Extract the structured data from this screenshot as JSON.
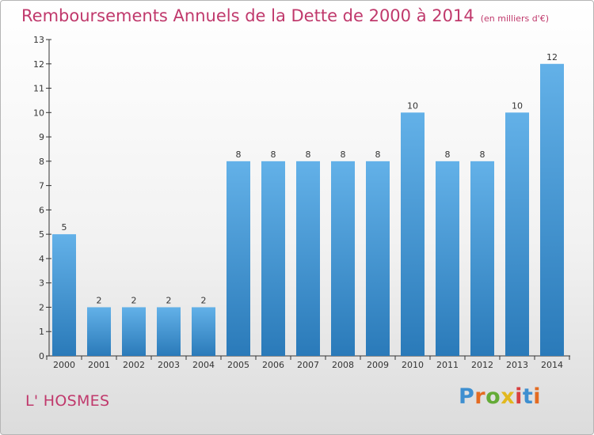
{
  "header": {
    "title": "Remboursements Annuels de la Dette de 2000 à 2014",
    "unit": "(en milliers d'€)"
  },
  "footer": {
    "place": "L' HOSMES",
    "brand": "Proxiti"
  },
  "colors": {
    "title": "#c0396c",
    "bar_light": "#63b1e8",
    "bar_dark": "#2a7ab9",
    "brand_letters": [
      "#3e8fd0",
      "#e46b21",
      "#64ab37",
      "#e2b81f",
      "#d83f3f",
      "#3e8fd0",
      "#e46b21"
    ]
  },
  "chart_data": {
    "type": "bar",
    "categories": [
      "2000",
      "2001",
      "2002",
      "2003",
      "2004",
      "2005",
      "2006",
      "2007",
      "2008",
      "2009",
      "2010",
      "2011",
      "2012",
      "2013",
      "2014"
    ],
    "values": [
      5,
      2,
      2,
      2,
      2,
      8,
      8,
      8,
      8,
      8,
      10,
      8,
      8,
      10,
      12
    ],
    "title": "Remboursements Annuels de la Dette de 2000 à 2014",
    "xlabel": "",
    "ylabel": "",
    "ylim": [
      0,
      13
    ],
    "yticks": [
      0,
      1,
      2,
      3,
      4,
      5,
      6,
      7,
      8,
      9,
      10,
      11,
      12,
      13
    ],
    "grid": false,
    "legend": "none",
    "data_labels": true
  }
}
